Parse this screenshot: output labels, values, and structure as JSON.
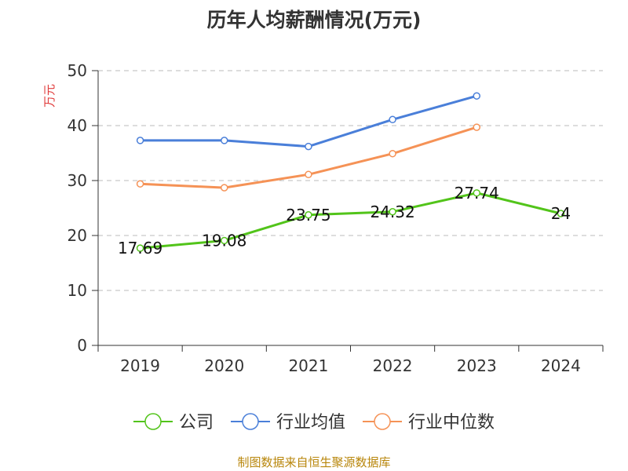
{
  "chart_data": {
    "type": "line",
    "title": "历年人均薪酬情况(万元)",
    "ylabel": "万元",
    "ylim": [
      0,
      50
    ],
    "yticks": [
      0,
      10,
      20,
      30,
      40,
      50
    ],
    "grid": true,
    "legend_position": "bottom",
    "categories": [
      "2019",
      "2020",
      "2021",
      "2022",
      "2023",
      "2024"
    ],
    "series": [
      {
        "name": "公司",
        "color": "#52c41a",
        "values": [
          17.69,
          19.08,
          23.75,
          24.32,
          27.74,
          24
        ],
        "labels": [
          "17.69",
          "19.08",
          "23.75",
          "24.32",
          "27.74",
          "24"
        ]
      },
      {
        "name": "行业均值",
        "color": "#4a7fd9",
        "values": [
          37.3,
          37.3,
          36.2,
          41.1,
          45.4,
          null
        ]
      },
      {
        "name": "行业中位数",
        "color": "#f59256",
        "values": [
          29.4,
          28.7,
          31.1,
          34.9,
          39.7,
          null
        ]
      }
    ]
  },
  "footer": {
    "source": "制图数据来自恒生聚源数据库"
  }
}
